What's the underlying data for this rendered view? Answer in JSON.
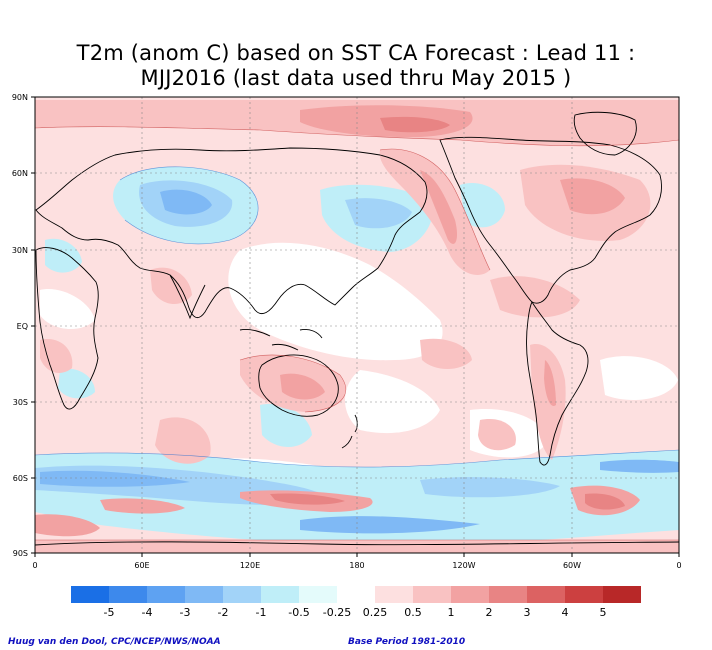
{
  "title": {
    "line1": "T2m (anom C) based on SST CA Forecast : Lead 11 :",
    "line2": "MJJ2016 (last data used thru May 2015 )"
  },
  "map": {
    "lat_labels": [
      "90N",
      "60N",
      "30N",
      "EQ",
      "30S",
      "60S",
      "90S"
    ],
    "lon_labels": [
      "0",
      "60E",
      "120E",
      "180",
      "120W",
      "60W",
      "0"
    ]
  },
  "colorbar": {
    "labels": [
      "-5",
      "-4",
      "-3",
      "-2",
      "-1",
      "-0.5",
      "-0.25",
      "0.25",
      "0.5",
      "1",
      "2",
      "3",
      "4",
      "5"
    ],
    "colors": [
      "#1a6fe6",
      "#3d89ec",
      "#5ea2f2",
      "#7fb9f5",
      "#a2d3f8",
      "#bfeef8",
      "#e4fbfb",
      "#ffffff",
      "#fde0e0",
      "#f9c2c2",
      "#f2a2a2",
      "#e88484",
      "#dc6262",
      "#cc4040",
      "#b82828"
    ]
  },
  "footer": {
    "credit": "Huug van den Dool, CPC/NCEP/NWS/NOAA",
    "base_period": "Base Period 1981-2010"
  }
}
